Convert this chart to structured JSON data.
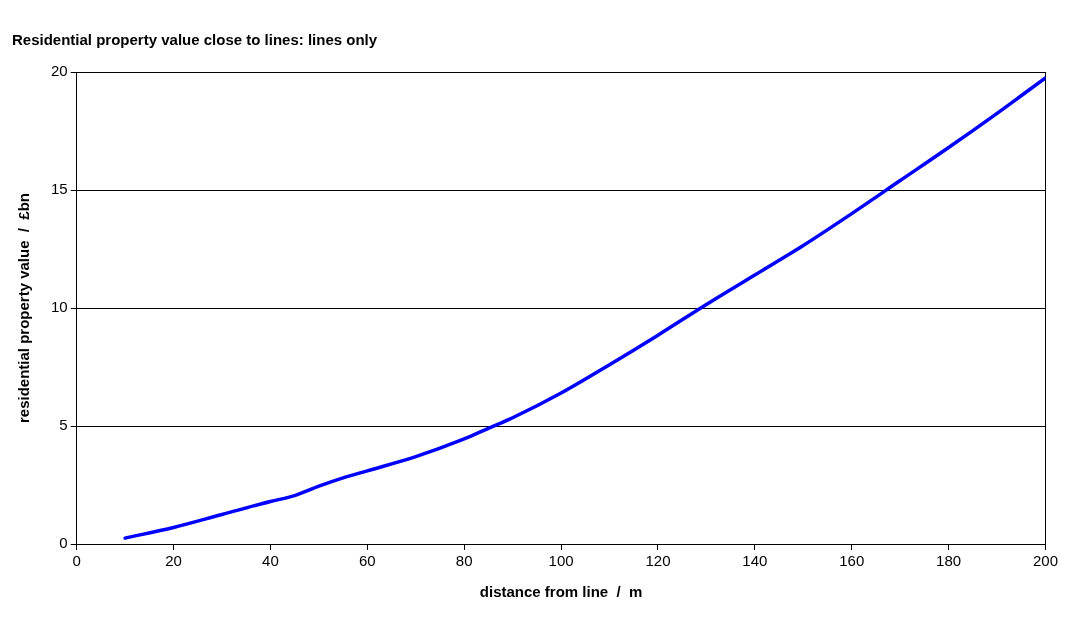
{
  "chart_data": {
    "type": "line",
    "title": "Residential property value close to lines: lines only",
    "xlabel": "distance from line  /  m",
    "ylabel": "residential property value  /  £bn",
    "x": [
      10,
      20,
      30,
      40,
      45,
      50,
      55,
      60,
      70,
      80,
      85,
      90,
      100,
      110,
      120,
      130,
      140,
      150,
      160,
      170,
      180,
      190,
      200
    ],
    "series": [
      {
        "color": "#0000ff",
        "values": [
          0.25,
          0.7,
          1.25,
          1.8,
          2.05,
          2.45,
          2.8,
          3.1,
          3.7,
          4.45,
          4.9,
          5.35,
          6.4,
          7.6,
          8.85,
          10.15,
          11.4,
          12.65,
          14.0,
          15.4,
          16.8,
          18.25,
          19.75
        ]
      }
    ],
    "xlim": [
      0,
      200
    ],
    "xticks": [
      0,
      20,
      40,
      60,
      80,
      100,
      120,
      140,
      160,
      180,
      200
    ],
    "ylim": [
      0,
      20
    ],
    "yticks": [
      0,
      5,
      10,
      15,
      20
    ],
    "grid": "y",
    "legend": false,
    "marker": "none",
    "line_style": "solid"
  }
}
